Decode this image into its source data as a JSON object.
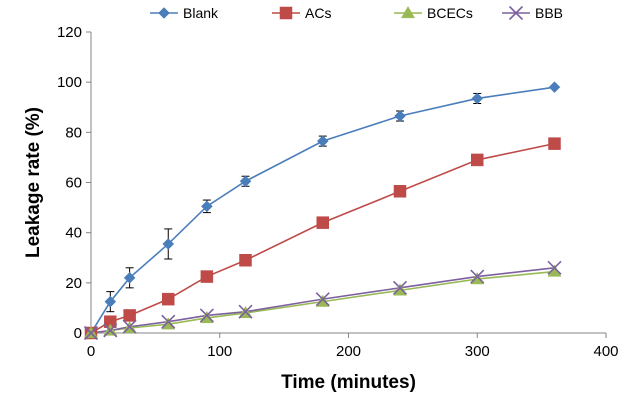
{
  "chart_data": {
    "type": "line",
    "title": "",
    "xlabel": "Time (minutes)",
    "ylabel": "Leakage rate (%)",
    "xlim": [
      0,
      400
    ],
    "ylim": [
      0,
      120
    ],
    "x_ticks": [
      0,
      100,
      200,
      300,
      400
    ],
    "y_ticks": [
      0,
      20,
      40,
      60,
      80,
      100,
      120
    ],
    "grid": false,
    "legend_position": "top",
    "series": [
      {
        "name": "Blank",
        "color": "#4a7ebb",
        "marker": "diamond",
        "x": [
          0,
          15,
          30,
          60,
          90,
          120,
          180,
          240,
          300,
          360
        ],
        "y": [
          0,
          12.5,
          22,
          35.5,
          50.5,
          60.5,
          76.5,
          86.5,
          93.5,
          98
        ],
        "error": [
          0,
          4,
          4,
          6,
          2.5,
          2,
          2,
          2,
          2,
          0
        ]
      },
      {
        "name": "ACs",
        "color": "#be4b48",
        "marker": "square",
        "x": [
          0,
          15,
          30,
          60,
          90,
          120,
          180,
          240,
          300,
          360
        ],
        "y": [
          0,
          4.5,
          7,
          13.5,
          22.5,
          29,
          44,
          56.5,
          69,
          75.5
        ],
        "error": [
          0,
          0,
          0,
          0,
          0,
          0,
          0,
          0,
          0,
          0
        ]
      },
      {
        "name": "BCECs",
        "color": "#98b954",
        "marker": "triangle",
        "x": [
          0,
          15,
          30,
          60,
          90,
          120,
          180,
          240,
          300,
          360
        ],
        "y": [
          0,
          1,
          2,
          3.5,
          6,
          8,
          12.5,
          17,
          21.5,
          24.5
        ],
        "error": [
          0,
          0,
          0,
          0,
          0,
          0,
          0,
          0,
          0,
          0
        ]
      },
      {
        "name": "BBB",
        "color": "#7d60a0",
        "marker": "x",
        "x": [
          0,
          15,
          30,
          60,
          90,
          120,
          180,
          240,
          300,
          360
        ],
        "y": [
          0,
          1,
          2.5,
          4.5,
          7,
          8.5,
          13.5,
          18,
          22.5,
          26
        ],
        "error": [
          0,
          0,
          0,
          0,
          0,
          0,
          0,
          0,
          0,
          0
        ]
      }
    ]
  }
}
